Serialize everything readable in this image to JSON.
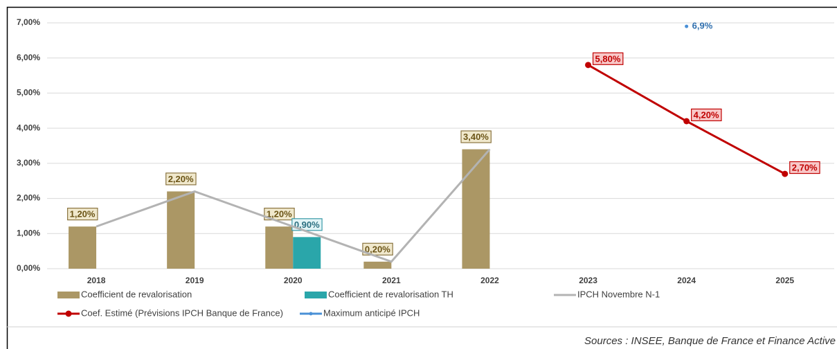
{
  "chart_data": {
    "type": "bar",
    "categories": [
      "2018",
      "2019",
      "2020",
      "2021",
      "2022",
      "2023",
      "2024",
      "2025"
    ],
    "series": [
      {
        "name": "Coefficient de revalorisation",
        "type": "bar",
        "color": "#ab9765",
        "values": [
          1.2,
          2.2,
          1.2,
          0.2,
          3.4,
          null,
          null,
          null
        ],
        "value_labels": [
          "1,20%",
          "2,20%",
          "1,20%",
          "0,20%",
          "3,40%",
          null,
          null,
          null
        ]
      },
      {
        "name": "Coefficient de revalorisation TH",
        "type": "bar",
        "color": "#2aa6aa",
        "values": [
          null,
          null,
          0.9,
          null,
          null,
          null,
          null,
          null
        ],
        "value_labels": [
          null,
          null,
          "0,90%",
          null,
          null,
          null,
          null,
          null
        ]
      },
      {
        "name": "IPCH Novembre N-1",
        "type": "line",
        "color": "#b3b3b3",
        "values": [
          1.2,
          2.2,
          1.2,
          0.2,
          3.4,
          null,
          null,
          null
        ]
      },
      {
        "name": "Coef. Estimé (Prévisions IPCH Banque de France)",
        "type": "line",
        "color": "#c00000",
        "markers": true,
        "values": [
          null,
          null,
          null,
          null,
          null,
          5.8,
          4.2,
          2.7
        ],
        "value_labels": [
          null,
          null,
          null,
          null,
          null,
          "5,80%",
          "4,20%",
          "2,70%"
        ]
      },
      {
        "name": "Maximum anticipé IPCH",
        "type": "line",
        "color": "#4a90d6",
        "markers": true,
        "values": [
          null,
          null,
          null,
          null,
          null,
          null,
          6.9,
          null
        ],
        "value_labels": [
          null,
          null,
          null,
          null,
          null,
          null,
          "6,9%",
          null
        ]
      }
    ],
    "ylim": [
      0,
      7
    ],
    "yticks": [
      {
        "value": 0,
        "label": "0,00%"
      },
      {
        "value": 1,
        "label": "1,00%"
      },
      {
        "value": 2,
        "label": "2,00%"
      },
      {
        "value": 3,
        "label": "3,00%"
      },
      {
        "value": 4,
        "label": "4,00%"
      },
      {
        "value": 5,
        "label": "5,00%"
      },
      {
        "value": 6,
        "label": "6,00%"
      },
      {
        "value": 7,
        "label": "7,00%"
      }
    ],
    "grid": true,
    "source": "Sources : INSEE, Banque de France et Finance Active"
  }
}
